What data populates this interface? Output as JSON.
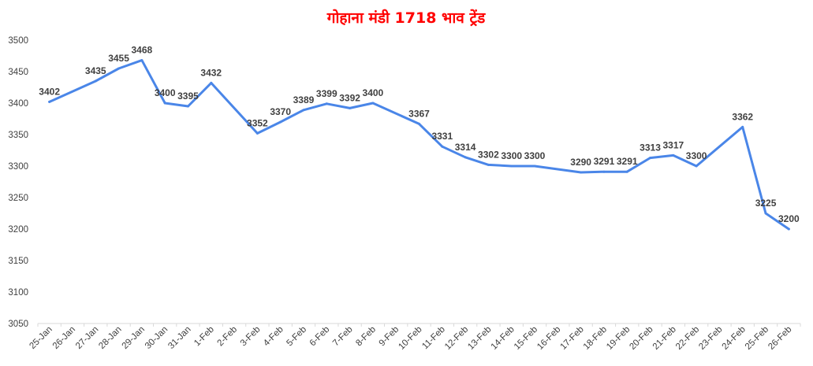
{
  "chart_data": {
    "type": "line",
    "title": "गोहाना मंडी 1718 भाव ट्रेंड",
    "title_color": "#ff0000",
    "line_color": "#4a86e8",
    "xlabel": "",
    "ylabel": "",
    "ylim": [
      3050,
      3500
    ],
    "yticks": [
      "3050",
      "3100",
      "3150",
      "3200",
      "3250",
      "3300",
      "3350",
      "3400",
      "3450",
      "3500"
    ],
    "grid": false,
    "legend": "none",
    "categories": [
      "25-Jan",
      "26-Jan",
      "27-Jan",
      "28-Jan",
      "29-Jan",
      "30-Jan",
      "31-Jan",
      "1-Feb",
      "2-Feb",
      "3-Feb",
      "4-Feb",
      "5-Feb",
      "6-Feb",
      "7-Feb",
      "8-Feb",
      "9-Feb",
      "10-Feb",
      "11-Feb",
      "12-Feb",
      "13-Feb",
      "14-Feb",
      "15-Feb",
      "16-Feb",
      "17-Feb",
      "18-Feb",
      "19-Feb",
      "20-Feb",
      "21-Feb",
      "22-Feb",
      "23-Feb",
      "24-Feb",
      "25-Feb",
      "26-Feb"
    ],
    "values": [
      3402,
      null,
      3435,
      3455,
      3468,
      3400,
      3395,
      3432,
      null,
      3352,
      3370,
      3389,
      3399,
      3392,
      3400,
      null,
      3367,
      3331,
      3314,
      3302,
      3300,
      3300,
      null,
      3290,
      3291,
      3291,
      3313,
      3317,
      3300,
      null,
      3362,
      3225,
      3200
    ]
  }
}
